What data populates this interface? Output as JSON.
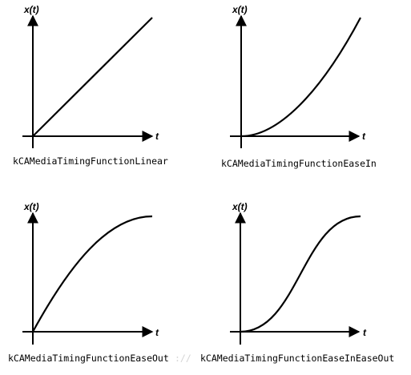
{
  "graphs": [
    {
      "y_label": "x(t)",
      "x_label": "t",
      "caption": "kCAMediaTimingFunctionLinear",
      "curve": "linear"
    },
    {
      "y_label": "x(t)",
      "x_label": "t",
      "caption": "kCAMediaTimingFunctionEaseIn",
      "curve": "easeIn"
    },
    {
      "y_label": "x(t)",
      "x_label": "t",
      "caption": "kCAMediaTimingFunctionEaseOut",
      "curve": "easeOut"
    },
    {
      "y_label": "x(t)",
      "x_label": "t",
      "caption": "kCAMediaTimingFunctionEaseInEaseOut",
      "curve": "easeInEaseOut"
    }
  ],
  "watermark": "://",
  "colors": {
    "line": "#000000",
    "background": "#ffffff",
    "watermark": "#d4d4d4"
  }
}
